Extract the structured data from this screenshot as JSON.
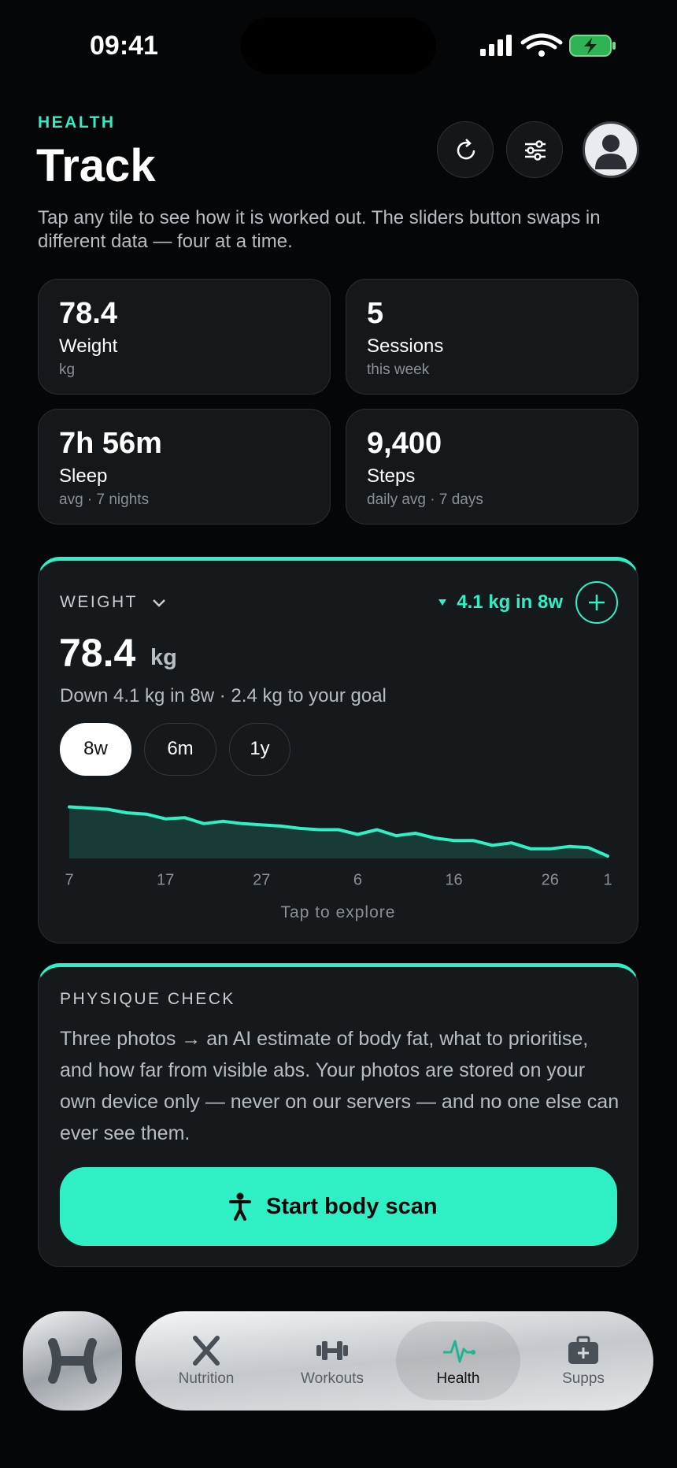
{
  "status_bar": {
    "time": "09:41"
  },
  "header": {
    "eyebrow": "HEALTH",
    "title": "Track",
    "description": "Tap any tile to see how it is worked out. The sliders button swaps in different data — four at a time."
  },
  "tiles": [
    {
      "value": "78.4",
      "label": "Weight",
      "sub": "kg"
    },
    {
      "value": "5",
      "label": "Sessions",
      "sub": "this week"
    },
    {
      "value": "7h 56m",
      "label": "Sleep",
      "sub": "avg · 7 nights"
    },
    {
      "value": "9,400",
      "label": "Steps",
      "sub": "daily avg · 7 days"
    }
  ],
  "weight_card": {
    "title": "WEIGHT",
    "change": "4.1 kg in 8w",
    "value": "78.4",
    "unit": "kg",
    "summary": "Down 4.1 kg in 8w · 2.4 kg to your goal",
    "ranges": [
      "8w",
      "6m",
      "1y"
    ],
    "footer": "Tap to explore",
    "chart_data": {
      "type": "line",
      "color": "#2ef0c4",
      "x": [
        0,
        2,
        4,
        6,
        8,
        10,
        12,
        14,
        16,
        18,
        20,
        22,
        24,
        26,
        28,
        30,
        32,
        34,
        36,
        38,
        40,
        42,
        44,
        46,
        48,
        50,
        52,
        54,
        56
      ],
      "values": [
        82.5,
        82.4,
        82.3,
        82.0,
        81.9,
        81.5,
        81.6,
        81.1,
        81.3,
        81.1,
        81.0,
        80.9,
        80.7,
        80.6,
        80.6,
        80.2,
        80.6,
        80.1,
        80.3,
        79.9,
        79.7,
        79.7,
        79.3,
        79.5,
        79.0,
        79.0,
        79.2,
        79.1,
        78.4
      ],
      "xlim": [
        0,
        56
      ],
      "ylim": [
        78.2,
        82.6
      ],
      "xticks": [
        {
          "value": 0,
          "label": "7"
        },
        {
          "value": 10,
          "label": "17"
        },
        {
          "value": 20,
          "label": "27"
        },
        {
          "value": 30,
          "label": "6"
        },
        {
          "value": 40,
          "label": "16"
        },
        {
          "value": 50,
          "label": "26"
        },
        {
          "value": 56,
          "label": "1"
        }
      ]
    }
  },
  "physique_card": {
    "title": "PHYSIQUE CHECK",
    "body": "Three photos → an AI estimate of body fat, what to prioritise, and how far from visible abs. Your photos are stored on your own device only — never on our servers — and no one else can ever see them.",
    "button": "Start body scan"
  },
  "nav": {
    "tabs": [
      "Nutrition",
      "Workouts",
      "Health",
      "Supps"
    ]
  }
}
